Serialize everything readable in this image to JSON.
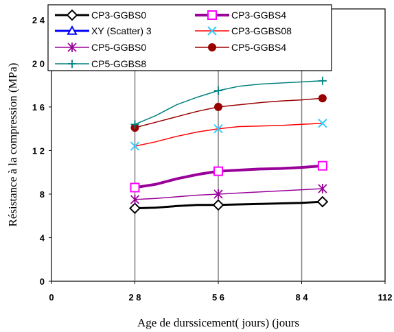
{
  "chart_data": {
    "type": "line",
    "xlabel": "Age de durssicement( jours) (jours",
    "ylabel": "Résistance à la compression (MPa)",
    "xlim": [
      0,
      112
    ],
    "ylim": [
      0,
      25
    ],
    "xticks": [
      0,
      28,
      56,
      84,
      112
    ],
    "yticks": [
      0,
      4,
      8,
      12,
      16,
      20,
      24
    ],
    "xtick_labels": [
      "0",
      "2 8",
      "5 6",
      "8 4",
      "112"
    ],
    "ytick_labels": [
      "0",
      "4",
      "8",
      "1 2",
      "1 6",
      "2 0",
      "2 4"
    ],
    "grid": "vertical",
    "legend_position": "top-left",
    "series": [
      {
        "name": "CP3-GGBS0",
        "color": "#000000",
        "marker": "diamond",
        "width": 3,
        "x": [
          28,
          35,
          42,
          49,
          56,
          63,
          70,
          77,
          84,
          91
        ],
        "y": [
          6.7,
          6.75,
          6.9,
          7.0,
          7.0,
          7.05,
          7.1,
          7.15,
          7.2,
          7.3
        ],
        "marker_x": [
          28,
          56,
          91
        ],
        "marker_y": [
          6.7,
          7.0,
          7.3
        ]
      },
      {
        "name": "CP3-GGBS4",
        "color": "#990099",
        "marker": "square",
        "width": 4,
        "x": [
          28,
          35,
          42,
          49,
          56,
          63,
          70,
          77,
          84,
          91
        ],
        "y": [
          8.6,
          8.9,
          9.4,
          9.8,
          10.1,
          10.2,
          10.3,
          10.35,
          10.45,
          10.6
        ],
        "marker_x": [
          28,
          56,
          91
        ],
        "marker_y": [
          8.6,
          10.1,
          10.6
        ]
      },
      {
        "name": "XY (Scatter) 3",
        "color": "#0000ff",
        "marker": "triangle",
        "width": 3,
        "x": [],
        "y": [],
        "marker_x": [],
        "marker_y": []
      },
      {
        "name": "CP3-GGBS08",
        "color": "#ff0000",
        "marker": "x",
        "width": 1.5,
        "x": [
          28,
          35,
          42,
          49,
          56,
          63,
          70,
          77,
          84,
          91
        ],
        "y": [
          12.4,
          12.8,
          13.3,
          13.7,
          14.0,
          14.2,
          14.25,
          14.3,
          14.4,
          14.5
        ],
        "marker_x": [
          28,
          56,
          91
        ],
        "marker_y": [
          12.4,
          14.0,
          14.5
        ]
      },
      {
        "name": "CP5-GGBS0",
        "color": "#990099",
        "marker": "asterisk",
        "width": 1.5,
        "x": [
          28,
          35,
          42,
          49,
          56,
          63,
          70,
          77,
          84,
          91
        ],
        "y": [
          7.5,
          7.6,
          7.75,
          7.9,
          8.0,
          8.1,
          8.2,
          8.3,
          8.4,
          8.5
        ],
        "marker_x": [
          28,
          56,
          91
        ],
        "marker_y": [
          7.5,
          8.0,
          8.5
        ]
      },
      {
        "name": "CP5-GGBS4",
        "color": "#990000",
        "marker": "circle",
        "width": 1.5,
        "x": [
          28,
          35,
          42,
          49,
          56,
          63,
          70,
          77,
          84,
          91
        ],
        "y": [
          14.1,
          14.6,
          15.1,
          15.6,
          16.0,
          16.2,
          16.4,
          16.55,
          16.65,
          16.8
        ],
        "marker_x": [
          28,
          56,
          91
        ],
        "marker_y": [
          14.1,
          16.0,
          16.8
        ]
      },
      {
        "name": "CP5-GGBS8",
        "color": "#008080",
        "marker": "plus",
        "width": 1.5,
        "x": [
          28,
          35,
          42,
          49,
          56,
          63,
          70,
          77,
          84,
          91
        ],
        "y": [
          14.4,
          15.2,
          16.2,
          16.9,
          17.5,
          17.9,
          18.1,
          18.2,
          18.3,
          18.4
        ],
        "marker_x": [
          28,
          56,
          91
        ],
        "marker_y": [
          14.4,
          17.5,
          18.4
        ]
      }
    ]
  }
}
